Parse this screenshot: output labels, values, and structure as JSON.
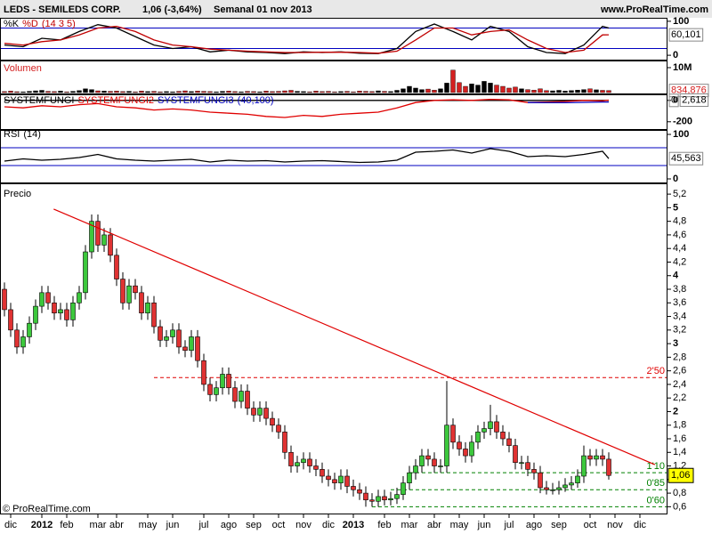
{
  "chart_data": [
    {
      "type": "candlestick",
      "title": "LEDS - SEMILEDS CORP.",
      "quote": "1,06 (-3,64%)",
      "period": "Semanal 01 nov 2013",
      "site": "www.ProRealTime.com",
      "copyright": "© ProRealTime.com",
      "name": "Precio",
      "color_up": "#3cc83c",
      "color_down": "#e03232",
      "open": [
        3.8,
        3.5,
        3.2,
        2.95,
        3.1,
        3.3,
        3.55,
        3.75,
        3.6,
        3.45,
        3.5,
        3.35,
        3.6,
        3.75,
        4.35,
        4.8,
        4.45,
        4.6,
        4.3,
        3.95,
        3.6,
        3.85,
        3.75,
        3.45,
        3.6,
        3.25,
        3.05,
        3.1,
        3.2,
        2.95,
        2.9,
        3.1,
        2.75,
        2.4,
        2.25,
        2.35,
        2.55,
        2.35,
        2.15,
        2.3,
        2.05,
        1.95,
        2.05,
        1.9,
        1.8,
        1.7,
        1.4,
        1.2,
        1.25,
        1.3,
        1.2,
        1.15,
        1.05,
        1.0,
        0.95,
        1.05,
        0.9,
        0.85,
        0.8,
        0.7,
        0.68,
        0.75,
        0.7,
        0.72,
        0.78,
        0.95,
        1.1,
        1.2,
        1.35,
        1.3,
        1.2,
        1.2,
        1.8,
        1.55,
        1.45,
        1.35,
        1.55,
        1.7,
        1.75,
        1.85,
        1.7,
        1.6,
        1.5,
        1.25,
        1.25,
        1.15,
        1.1,
        0.88,
        0.85,
        0.85,
        0.88,
        0.92,
        0.95,
        1.05,
        1.35,
        1.3,
        1.35,
        1.3
      ],
      "high": [
        3.9,
        3.6,
        3.3,
        3.2,
        3.4,
        3.65,
        3.85,
        3.85,
        3.7,
        3.6,
        3.6,
        3.7,
        3.85,
        4.45,
        4.9,
        4.9,
        4.7,
        4.7,
        4.4,
        4.05,
        3.95,
        3.95,
        3.85,
        3.7,
        3.7,
        3.35,
        3.2,
        3.3,
        3.3,
        3.05,
        3.2,
        3.2,
        2.85,
        2.5,
        2.45,
        2.65,
        2.65,
        2.45,
        2.4,
        2.4,
        2.15,
        2.15,
        2.15,
        2.0,
        1.9,
        1.8,
        1.5,
        1.35,
        1.4,
        1.4,
        1.3,
        1.25,
        1.15,
        1.1,
        1.15,
        1.15,
        1.0,
        0.95,
        0.9,
        0.8,
        0.85,
        0.85,
        0.82,
        0.88,
        1.05,
        1.2,
        1.3,
        1.45,
        1.45,
        1.4,
        1.3,
        2.45,
        1.9,
        1.65,
        1.55,
        1.65,
        1.8,
        1.85,
        2.1,
        1.95,
        1.8,
        1.7,
        1.6,
        1.35,
        1.35,
        1.25,
        1.2,
        0.98,
        0.95,
        0.98,
        1.02,
        1.05,
        1.15,
        1.5,
        1.45,
        1.45,
        1.45,
        1.4
      ],
      "low": [
        3.4,
        3.1,
        2.85,
        2.85,
        3.0,
        3.2,
        3.45,
        3.5,
        3.35,
        3.35,
        3.25,
        3.25,
        3.5,
        3.65,
        4.25,
        4.35,
        4.35,
        4.2,
        3.85,
        3.5,
        3.5,
        3.65,
        3.35,
        3.35,
        3.15,
        2.95,
        2.95,
        3.0,
        2.85,
        2.8,
        2.8,
        2.65,
        2.3,
        2.15,
        2.15,
        2.25,
        2.25,
        2.05,
        2.05,
        1.95,
        1.85,
        1.85,
        1.8,
        1.7,
        1.6,
        1.3,
        1.1,
        1.1,
        1.15,
        1.1,
        1.05,
        0.95,
        0.9,
        0.85,
        0.85,
        0.8,
        0.75,
        0.7,
        0.6,
        0.6,
        0.6,
        0.62,
        0.62,
        0.64,
        0.7,
        0.85,
        1.0,
        1.1,
        1.2,
        1.1,
        1.1,
        1.1,
        1.45,
        1.35,
        1.25,
        1.25,
        1.45,
        1.6,
        1.65,
        1.6,
        1.5,
        1.4,
        1.15,
        1.15,
        1.05,
        1.0,
        0.8,
        0.78,
        0.78,
        0.78,
        0.82,
        0.85,
        0.88,
        0.95,
        1.2,
        1.2,
        1.2,
        1.0
      ],
      "close": [
        3.5,
        3.2,
        2.95,
        3.1,
        3.3,
        3.55,
        3.75,
        3.6,
        3.45,
        3.5,
        3.35,
        3.6,
        3.75,
        4.35,
        4.8,
        4.45,
        4.6,
        4.3,
        3.95,
        3.6,
        3.85,
        3.75,
        3.45,
        3.6,
        3.25,
        3.05,
        3.1,
        3.2,
        2.95,
        2.9,
        3.1,
        2.75,
        2.4,
        2.25,
        2.35,
        2.55,
        2.35,
        2.15,
        2.3,
        2.05,
        1.95,
        2.05,
        1.9,
        1.8,
        1.7,
        1.4,
        1.2,
        1.25,
        1.3,
        1.2,
        1.15,
        1.05,
        1.0,
        0.95,
        1.05,
        0.9,
        0.85,
        0.8,
        0.7,
        0.68,
        0.75,
        0.7,
        0.72,
        0.78,
        0.95,
        1.1,
        1.2,
        1.35,
        1.3,
        1.2,
        1.2,
        1.8,
        1.55,
        1.45,
        1.35,
        1.55,
        1.7,
        1.75,
        1.85,
        1.7,
        1.6,
        1.5,
        1.25,
        1.25,
        1.15,
        1.1,
        0.88,
        0.85,
        0.85,
        0.88,
        0.92,
        0.95,
        1.05,
        1.35,
        1.3,
        1.35,
        1.3,
        1.06
      ],
      "last": {
        "value": 1.06,
        "label": "1,06"
      },
      "xlim": [
        -0.5,
        106.5
      ],
      "xticks": [
        {
          "value": 1,
          "label": "dic"
        },
        {
          "value": 6,
          "label": "2012"
        },
        {
          "value": 10,
          "label": "feb"
        },
        {
          "value": 15,
          "label": "mar"
        },
        {
          "value": 18,
          "label": "abr"
        },
        {
          "value": 23,
          "label": "may"
        },
        {
          "value": 27,
          "label": "jun"
        },
        {
          "value": 32,
          "label": "jul"
        },
        {
          "value": 36,
          "label": "ago"
        },
        {
          "value": 40,
          "label": "sep"
        },
        {
          "value": 44,
          "label": "oct"
        },
        {
          "value": 48,
          "label": "nov"
        },
        {
          "value": 52,
          "label": "dic"
        },
        {
          "value": 56,
          "label": "2013"
        },
        {
          "value": 61,
          "label": "feb"
        },
        {
          "value": 65,
          "label": "mar"
        },
        {
          "value": 69,
          "label": "abr"
        },
        {
          "value": 73,
          "label": "may"
        },
        {
          "value": 77,
          "label": "jun"
        },
        {
          "value": 81,
          "label": "jul"
        },
        {
          "value": 85,
          "label": "ago"
        },
        {
          "value": 89,
          "label": "sep"
        },
        {
          "value": 94,
          "label": "oct"
        },
        {
          "value": 98,
          "label": "nov"
        },
        {
          "value": 102,
          "label": "dic"
        }
      ],
      "ylim": [
        0.5,
        5.28
      ],
      "yticks": [
        {
          "value": 0.6,
          "label": "0,6"
        },
        {
          "value": 0.8,
          "label": "0,8"
        },
        1,
        {
          "value": 1.2,
          "label": "1,2"
        },
        {
          "value": 1.4,
          "label": "1,4"
        },
        {
          "value": 1.6,
          "label": "1,6"
        },
        {
          "value": 1.8,
          "label": "1,8"
        },
        2,
        {
          "value": 2.2,
          "label": "2,2"
        },
        {
          "value": 2.4,
          "label": "2,4"
        },
        {
          "value": 2.6,
          "label": "2,6"
        },
        {
          "value": 2.8,
          "label": "2,8"
        },
        3,
        {
          "value": 3.2,
          "label": "3,2"
        },
        {
          "value": 3.4,
          "label": "3,4"
        },
        {
          "value": 3.6,
          "label": "3,6"
        },
        {
          "value": 3.8,
          "label": "3,8"
        },
        4,
        {
          "value": 4.2,
          "label": "4,2"
        },
        {
          "value": 4.4,
          "label": "4,4"
        },
        {
          "value": 4.6,
          "label": "4,6"
        },
        {
          "value": 4.8,
          "label": "4,8"
        },
        5,
        {
          "value": 5.2,
          "label": "5,2"
        }
      ],
      "levels": [
        {
          "value": 2.5,
          "label": "2'50",
          "color": "#e00000",
          "start": 24
        },
        {
          "value": 1.1,
          "label": "1'10",
          "color": "#008000",
          "start": 65
        },
        {
          "value": 0.85,
          "label": "0'85",
          "color": "#008000",
          "start": 62
        },
        {
          "value": 0.6,
          "label": "0'60",
          "color": "#008000",
          "start": 59
        }
      ],
      "trendline": {
        "x": [
          7.9,
          104.4
        ],
        "y": [
          4.98,
          1.22
        ],
        "color": "#e00000"
      }
    },
    {
      "type": "line",
      "title": "(14 3 5)",
      "x": [
        0,
        3,
        6,
        9,
        12,
        15,
        18,
        21,
        24,
        27,
        30,
        33,
        36,
        39,
        42,
        45,
        48,
        51,
        54,
        57,
        60,
        63,
        66,
        69,
        72,
        75,
        78,
        81,
        84,
        87,
        90,
        93,
        96,
        97
      ],
      "series": [
        {
          "name": "%K",
          "color": "#000000",
          "values": [
            30,
            25,
            50,
            45,
            70,
            90,
            80,
            55,
            30,
            20,
            25,
            10,
            15,
            10,
            8,
            5,
            10,
            8,
            10,
            6,
            5,
            20,
            70,
            92,
            70,
            45,
            85,
            70,
            25,
            8,
            5,
            30,
            85,
            80
          ]
        },
        {
          "name": "%D",
          "color": "#c00000",
          "values": [
            35,
            30,
            40,
            45,
            60,
            80,
            85,
            70,
            45,
            30,
            25,
            18,
            15,
            12,
            10,
            8,
            8,
            9,
            9,
            8,
            6,
            12,
            45,
            80,
            80,
            60,
            70,
            75,
            45,
            20,
            8,
            15,
            60,
            60.101
          ]
        }
      ],
      "ylim": [
        -5,
        105
      ],
      "yticks": [
        0,
        100
      ],
      "levels": [
        20,
        80
      ],
      "level_color": "#0000c0",
      "current": {
        "value": 60.101,
        "label": "60,101"
      }
    },
    {
      "type": "bar",
      "title": "Volumen",
      "color_up": "#000000",
      "color_down": "#d42020",
      "values": [
        400,
        600,
        350,
        300,
        500,
        700,
        900,
        500,
        400,
        600,
        300,
        500,
        800,
        1500,
        1200,
        700,
        600,
        500,
        600,
        400,
        500,
        300,
        600,
        400,
        500,
        300,
        400,
        300,
        500,
        700,
        400,
        600,
        500,
        400,
        300,
        500,
        600,
        400,
        300,
        500,
        400,
        300,
        600,
        400,
        500,
        700,
        900,
        500,
        400,
        300,
        600,
        400,
        500,
        300,
        400,
        500,
        300,
        600,
        500,
        400,
        700,
        500,
        400,
        900,
        1500,
        2500,
        1800,
        1200,
        1400,
        1000,
        1500,
        3800,
        9000,
        4000,
        2500,
        3500,
        3000,
        4500,
        3800,
        3000,
        2500,
        1800,
        2200,
        1500,
        1200,
        1000,
        1500,
        800,
        700,
        900,
        600,
        800,
        1000,
        1200,
        1500,
        1100,
        900,
        834.876
      ],
      "ylim": [
        0,
        10000
      ],
      "yticks": [
        {
          "value": 10000,
          "label": "10M"
        }
      ],
      "current": {
        "value": 834.876,
        "label": "834,876"
      }
    },
    {
      "type": "line",
      "title": "(40,100)",
      "x": [
        0,
        3,
        6,
        9,
        12,
        15,
        18,
        21,
        24,
        27,
        30,
        33,
        36,
        39,
        42,
        45,
        48,
        51,
        54,
        57,
        60,
        63,
        66,
        69,
        72,
        75,
        78,
        81,
        84,
        87,
        90,
        93,
        96,
        97
      ],
      "series": [
        {
          "name": "SYSTEMFUNGI",
          "color": "#000000",
          "values": [
            0,
            0,
            0,
            0,
            0,
            0,
            0,
            0,
            0,
            0,
            0,
            0,
            0,
            0,
            0,
            0,
            0,
            0,
            0,
            0,
            0,
            0,
            0,
            0,
            0,
            0,
            0,
            0,
            0,
            0,
            0,
            0,
            0,
            0
          ]
        },
        {
          "name": "SYSTEMFUNGI2",
          "color": "#e00000",
          "values": [
            -60,
            -70,
            -50,
            -60,
            -40,
            -30,
            -60,
            -70,
            -90,
            -80,
            -90,
            -110,
            -120,
            -130,
            -150,
            -160,
            -140,
            -150,
            -130,
            -120,
            -110,
            -70,
            -20,
            0,
            5,
            0,
            10,
            5,
            -20,
            -15,
            -10,
            0,
            -5,
            2.618
          ]
        },
        {
          "name": "SYSTEMFUNGI3",
          "color": "#0000c0",
          "values": [
            null,
            null,
            null,
            null,
            null,
            null,
            null,
            null,
            null,
            null,
            null,
            null,
            null,
            null,
            null,
            null,
            null,
            null,
            null,
            null,
            null,
            null,
            null,
            null,
            null,
            null,
            null,
            null,
            -20,
            -22,
            -22,
            -18,
            -15,
            -15
          ]
        }
      ],
      "ylim": [
        -260,
        40
      ],
      "yticks": [
        0,
        -200
      ],
      "current": [
        0,
        {
          "value": 2.618,
          "label": "2,618"
        }
      ]
    },
    {
      "type": "line",
      "title": "(14)",
      "x": [
        0,
        3,
        6,
        9,
        12,
        15,
        18,
        21,
        24,
        27,
        30,
        33,
        36,
        39,
        42,
        45,
        48,
        51,
        54,
        57,
        60,
        63,
        66,
        69,
        72,
        75,
        78,
        81,
        84,
        87,
        90,
        93,
        96,
        97
      ],
      "series": [
        {
          "name": "RSI",
          "color": "#000000",
          "values": [
            40,
            45,
            42,
            44,
            48,
            55,
            45,
            42,
            40,
            42,
            44,
            38,
            42,
            40,
            41,
            38,
            40,
            41,
            39,
            37,
            38,
            42,
            60,
            62,
            65,
            58,
            68,
            62,
            50,
            52,
            50,
            55,
            62,
            45.563
          ]
        }
      ],
      "ylim": [
        -10,
        110
      ],
      "yticks": [
        0,
        100
      ],
      "levels": [
        30,
        70
      ],
      "level_color": "#0000c0",
      "current": {
        "value": 45.563,
        "label": "45,563"
      }
    }
  ]
}
